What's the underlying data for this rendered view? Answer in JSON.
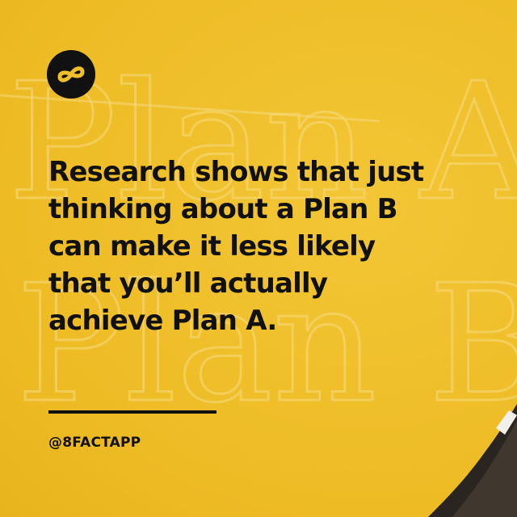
{
  "post": {
    "headline_lines": [
      "Research shows that just",
      "thinking about a Plan B",
      "can make it less likely",
      "that you’ll actually",
      "achieve Plan A."
    ],
    "handle": "@8FACTAPP"
  },
  "chalk": {
    "line1": "Plan A",
    "line2": "Plan B"
  },
  "colors": {
    "background": "#F0C02A",
    "text": "#111111",
    "chalk": "#F6D97A"
  },
  "icons": {
    "logo": "infinity-eight-icon"
  }
}
